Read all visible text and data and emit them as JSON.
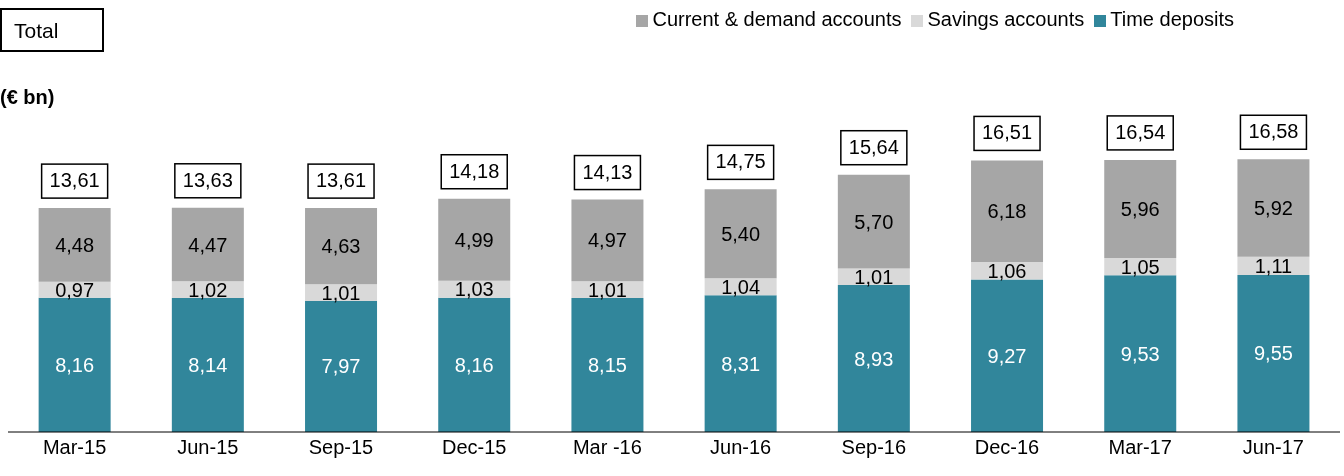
{
  "chart_data": {
    "type": "bar",
    "title": "Total",
    "ylabel": "(€ bn)",
    "stacked": true,
    "legend": "top right",
    "categories": [
      "Mar-15",
      "Jun-15",
      "Sep-15",
      "Dec-15",
      "Mar -16",
      "Jun-16",
      "Sep-16",
      "Dec-16",
      "Mar-17",
      "Jun-17"
    ],
    "series": [
      {
        "name": "Time deposits",
        "color": "#31869b",
        "values": [
          8.16,
          8.14,
          7.97,
          8.16,
          8.15,
          8.31,
          8.93,
          9.27,
          9.53,
          9.55
        ],
        "value_labels": [
          "8,16",
          "8,14",
          "7,97",
          "8,16",
          "8,15",
          "8,31",
          "8,93",
          "9,27",
          "9,53",
          "9,55"
        ]
      },
      {
        "name": "Savings accounts",
        "color": "#d9d9d9",
        "values": [
          0.97,
          1.02,
          1.01,
          1.03,
          1.01,
          1.04,
          1.01,
          1.06,
          1.05,
          1.11
        ],
        "value_labels": [
          "0,97",
          "1,02",
          "1,01",
          "1,03",
          "1,01",
          "1,04",
          "1,01",
          "1,06",
          "1,05",
          "1,11"
        ]
      },
      {
        "name": "Current & demand accounts",
        "color": "#a6a6a6",
        "values": [
          4.48,
          4.47,
          4.63,
          4.99,
          4.97,
          5.4,
          5.7,
          6.18,
          5.96,
          5.92
        ],
        "value_labels": [
          "4,48",
          "4,47",
          "4,63",
          "4,99",
          "4,97",
          "5,40",
          "5,70",
          "6,18",
          "5,96",
          "5,92"
        ]
      }
    ],
    "totals": [
      "13,61",
      "13,63",
      "13,61",
      "14,18",
      "14,13",
      "14,75",
      "15,64",
      "16,51",
      "16,54",
      "16,58"
    ]
  }
}
